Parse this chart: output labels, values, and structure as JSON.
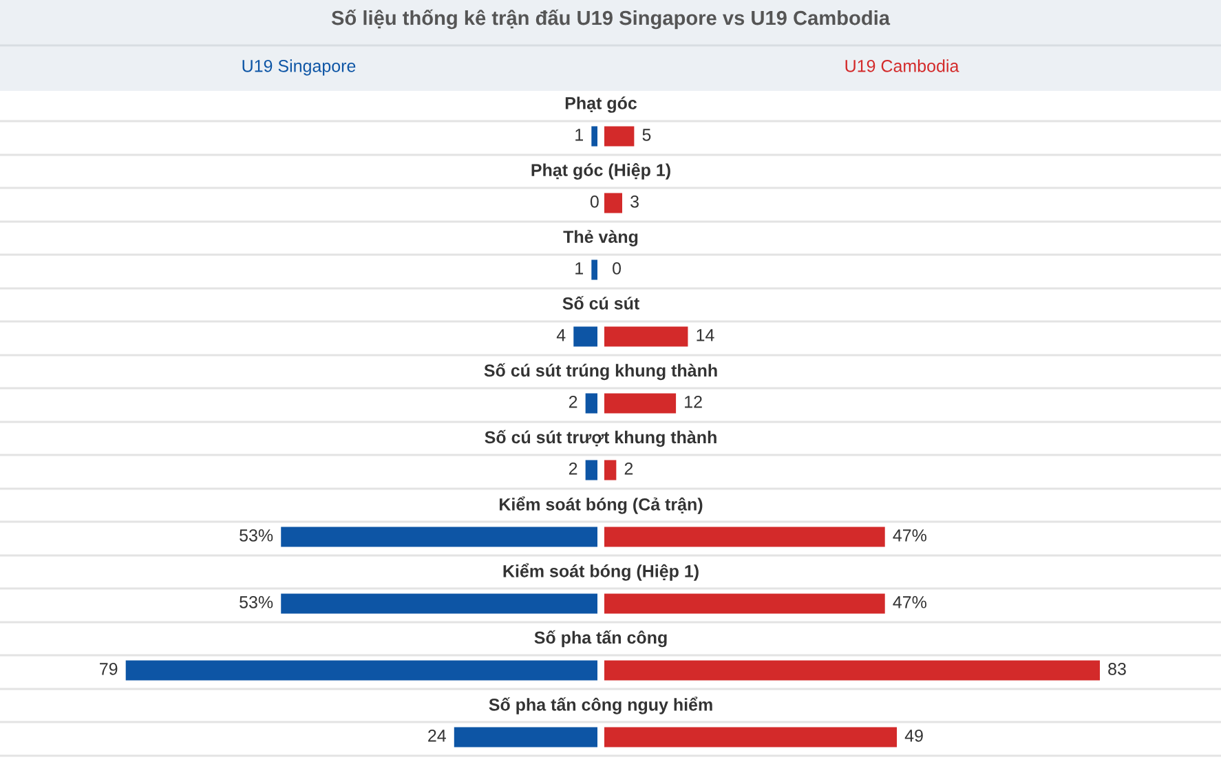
{
  "chart_data": [
    {
      "type": "bar",
      "orientation": "horizontal",
      "legend": false,
      "title": "Số liệu thống kê trận đấu U19 Singapore vs U19 Cambodia",
      "categories": [
        "Phạt góc",
        "Phạt góc (Hiệp 1)",
        "Thẻ vàng",
        "Số cú sút",
        "Số cú sút trúng khung thành",
        "Số cú sút trượt khung thành",
        "Kiểm soát bóng (Cả trận)",
        "Kiểm soát bóng (Hiệp 1)",
        "Số pha tấn công",
        "Số pha tấn công nguy hiểm"
      ],
      "series": [
        {
          "name": "U19 Singapore",
          "color": "#0d55a5",
          "values": [
            1,
            0,
            1,
            4,
            2,
            2,
            53,
            53,
            79,
            24
          ],
          "value_labels": [
            "1",
            "0",
            "1",
            "4",
            "2",
            "2",
            "53%",
            "53%",
            "79",
            "24"
          ]
        }
      ]
    },
    {
      "type": "bar",
      "orientation": "horizontal",
      "legend": false,
      "categories": [
        null,
        null,
        null,
        null,
        null,
        null,
        null,
        null,
        null,
        null
      ],
      "series": [
        {
          "name": "U19 Cambodia",
          "color": "#d32a2a",
          "values": [
            5,
            3,
            0,
            14,
            12,
            2,
            47,
            47,
            83,
            49
          ],
          "value_labels": [
            "5",
            "3",
            "0",
            "14",
            "12",
            "2",
            "47%",
            "47%",
            "83",
            "49"
          ]
        }
      ]
    }
  ]
}
